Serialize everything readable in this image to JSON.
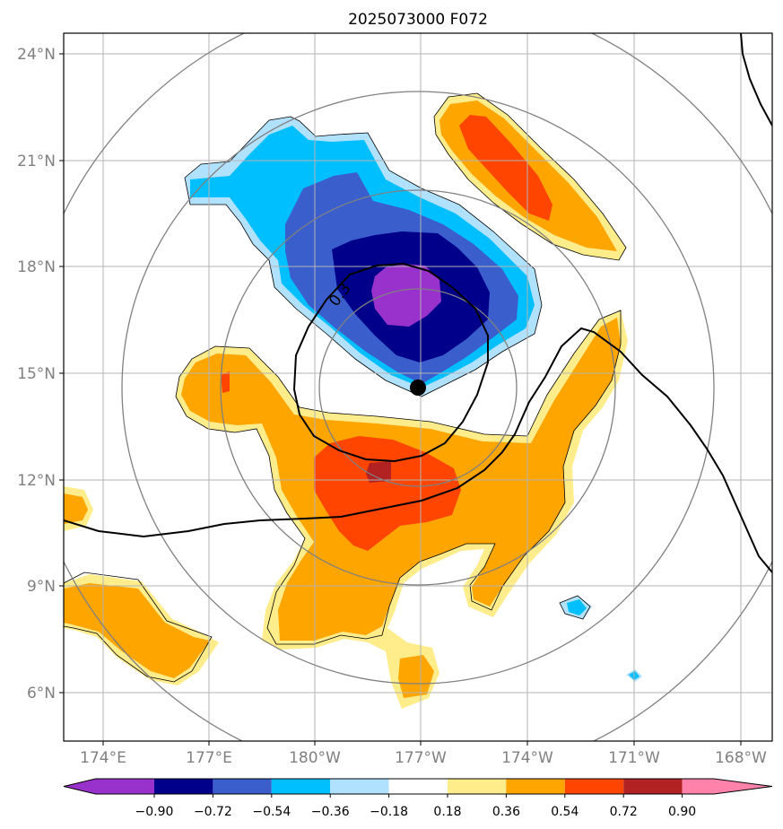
{
  "title": "2025073000 F072",
  "lat_labels": [
    "24°N",
    "21°N",
    "18°N",
    "15°N",
    "12°N",
    "9°N",
    "6°N"
  ],
  "lon_labels": [
    "174°E",
    "177°E",
    "180°W",
    "177°W",
    "174°W",
    "171°W",
    "168°W"
  ],
  "contour_label": "0.3",
  "colorbar": {
    "ticks": [
      "−0.90",
      "−0.72",
      "−0.54",
      "−0.36",
      "−0.18",
      "0.18",
      "0.36",
      "0.54",
      "0.72",
      "0.90"
    ],
    "colors": [
      "#9932cc",
      "#00008b",
      "#3a5fcd",
      "#00bfff",
      "#b0e2ff",
      "#ffffff",
      "#ffec8b",
      "#ffa500",
      "#ff4500",
      "#b22222",
      "#ff82ab"
    ]
  },
  "storm_center": {
    "lat": 14.6,
    "lon": "177°W"
  },
  "colors": {
    "neg_extreme": "#9932cc",
    "neg_strong": "#00008b",
    "neg_mid": "#3a5fcd",
    "neg_light": "#00bfff",
    "neg_pale": "#b0e2ff",
    "pos_pale": "#ffec8b",
    "pos_light": "#ffa500",
    "pos_mid": "#ff4500",
    "pos_strong": "#b22222",
    "range_ring": "#808080",
    "grid": "#b3b3b3"
  }
}
